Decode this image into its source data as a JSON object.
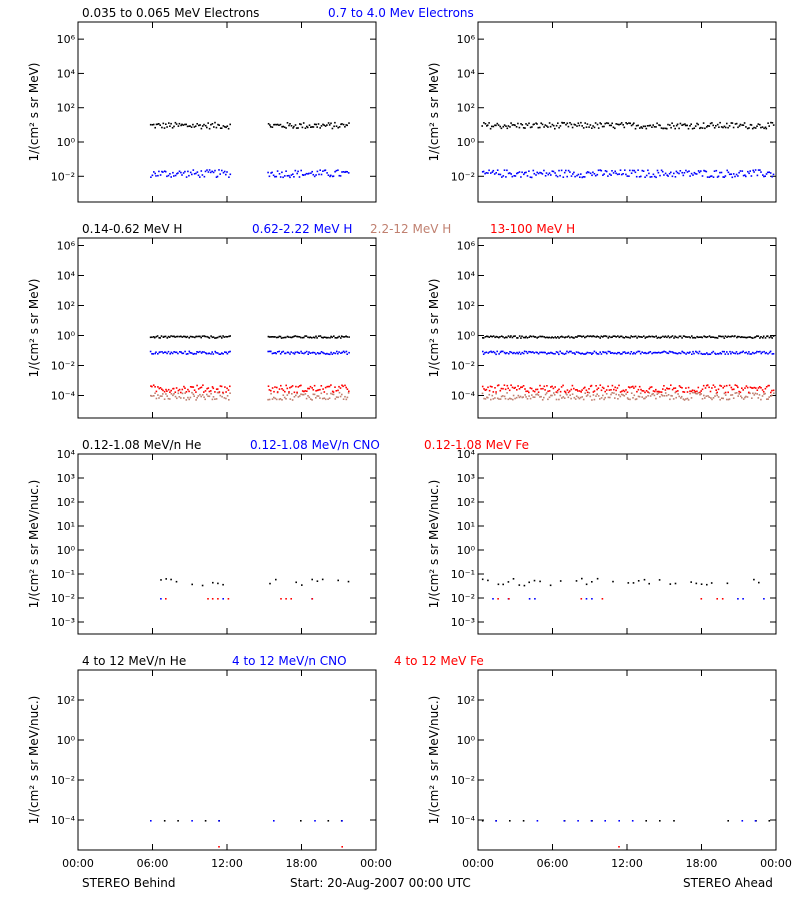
{
  "chart_data": [
    {
      "type": "scatter",
      "id": "electrons",
      "scale": "log",
      "ylabel": "1/(cm² s sr MeV)",
      "ylim_exp": [
        -3.5,
        7
      ],
      "yticks": [
        {
          "exp": 6,
          "label": "10⁶"
        },
        {
          "exp": 4,
          "label": "10⁴"
        },
        {
          "exp": 2,
          "label": "10²"
        },
        {
          "exp": 0,
          "label": "10⁰"
        },
        {
          "exp": -2,
          "label": "10⁻²"
        }
      ],
      "series": [
        {
          "name": "0.035 to 0.065 MeV Electrons",
          "color": "#000000",
          "level_exp": 1.0,
          "spread": 0.18
        },
        {
          "name": "0.7 to 4.0 Mev Electrons",
          "color": "#0000ff",
          "level_exp": -1.8,
          "spread": 0.22
        }
      ]
    },
    {
      "type": "scatter",
      "id": "protons",
      "scale": "log",
      "ylabel": "1/(cm² s sr MeV)",
      "ylim_exp": [
        -5.5,
        6.5
      ],
      "yticks": [
        {
          "exp": 6,
          "label": "10⁶"
        },
        {
          "exp": 4,
          "label": "10⁴"
        },
        {
          "exp": 2,
          "label": "10²"
        },
        {
          "exp": 0,
          "label": "10⁰"
        },
        {
          "exp": -2,
          "label": "10⁻²"
        },
        {
          "exp": -4,
          "label": "10⁻⁴"
        }
      ],
      "series": [
        {
          "name": "0.14-0.62 MeV H",
          "color": "#000000",
          "level_exp": -0.05,
          "spread": 0.07
        },
        {
          "name": "0.62-2.22 MeV H",
          "color": "#0000ff",
          "level_exp": -1.1,
          "spread": 0.1
        },
        {
          "name": "2.2-12 MeV H",
          "color": "#c08070",
          "level_exp": -4.0,
          "spread": 0.25
        },
        {
          "name": "13-100 MeV H",
          "color": "#ff0000",
          "level_exp": -3.5,
          "spread": 0.25
        }
      ]
    },
    {
      "type": "scatter",
      "id": "heavy_low",
      "scale": "log",
      "ylabel": "1/(cm² s sr MeV/nuc.)",
      "ylim_exp": [
        -3.5,
        4
      ],
      "yticks": [
        {
          "exp": 4,
          "label": "10⁴"
        },
        {
          "exp": 3,
          "label": "10³"
        },
        {
          "exp": 2,
          "label": "10²"
        },
        {
          "exp": 1,
          "label": "10¹"
        },
        {
          "exp": 0,
          "label": "10⁰"
        },
        {
          "exp": -1,
          "label": "10⁻¹"
        },
        {
          "exp": -2,
          "label": "10⁻²"
        },
        {
          "exp": -3,
          "label": "10⁻³"
        }
      ],
      "series": [
        {
          "name": "0.12-1.08 MeV/n He",
          "color": "#000000",
          "level_exp": -1.3,
          "spread": 0.15
        },
        {
          "name": "0.12-1.08 MeV/n CNO",
          "color": "#0000ff",
          "level_exp": -2.0,
          "spread": 0.0
        },
        {
          "name": "0.12-1.08 MeV Fe",
          "color": "#ff0000",
          "level_exp": -2.0,
          "spread": 0.0
        }
      ]
    },
    {
      "type": "scatter",
      "id": "heavy_high",
      "scale": "log",
      "ylabel": "1/(cm² s sr MeV/nuc.)",
      "ylim_exp": [
        -5.5,
        3.5
      ],
      "yticks": [
        {
          "exp": 2,
          "label": "10²"
        },
        {
          "exp": 0,
          "label": "10⁰"
        },
        {
          "exp": -2,
          "label": "10⁻²"
        },
        {
          "exp": -4,
          "label": "10⁻⁴"
        }
      ],
      "series": [
        {
          "name": "4 to 12 MeV/n He",
          "color": "#000000",
          "level_exp": -4.0,
          "spread": 0.0
        },
        {
          "name": "4 to 12 MeV/n CNO",
          "color": "#0000ff",
          "level_exp": -4.0,
          "spread": 0.0
        },
        {
          "name": "4 to 12 MeV Fe",
          "color": "#ff0000",
          "level_exp": -5.3,
          "spread": 0.0
        }
      ]
    }
  ],
  "xaxis": {
    "range_hours": [
      0,
      24
    ],
    "ticks": [
      {
        "h": 0,
        "label": "00:00"
      },
      {
        "h": 6,
        "label": "06:00"
      },
      {
        "h": 12,
        "label": "12:00"
      },
      {
        "h": 18,
        "label": "18:00"
      },
      {
        "h": 24,
        "label": "00:00"
      }
    ]
  },
  "behind_gap_hours": [
    [
      0,
      5.8
    ],
    [
      12.2,
      15.2
    ],
    [
      21.8,
      24
    ]
  ],
  "footer": {
    "left": "STEREO Behind",
    "center": "Start: 20-Aug-2007 00:00 UTC",
    "right": "STEREO Ahead"
  }
}
